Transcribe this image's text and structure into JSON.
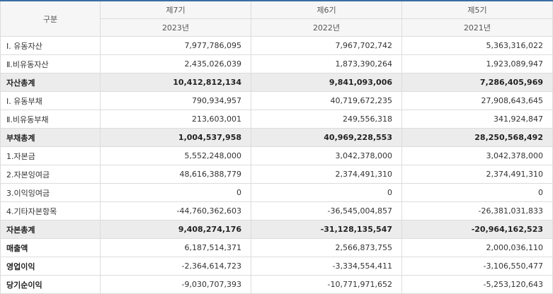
{
  "header": {
    "category": "구분",
    "periods": [
      {
        "period": "제7기",
        "year": "2023년"
      },
      {
        "period": "제6기",
        "year": "2022년"
      },
      {
        "period": "제5기",
        "year": "2021년"
      }
    ]
  },
  "rows": [
    {
      "label": "Ⅰ. 유동자산",
      "values": [
        "7,977,786,095",
        "7,967,702,742",
        "5,363,316,022"
      ],
      "style": "normal"
    },
    {
      "label": "Ⅱ.비유동자산",
      "values": [
        "2,435,026,039",
        "1,873,390,264",
        "1,923,089,947"
      ],
      "style": "normal"
    },
    {
      "label": "자산총계",
      "values": [
        "10,412,812,134",
        "9,841,093,006",
        "7,286,405,969"
      ],
      "style": "total"
    },
    {
      "label": "Ⅰ. 유동부채",
      "values": [
        "790,934,957",
        "40,719,672,235",
        "27,908,643,645"
      ],
      "style": "normal"
    },
    {
      "label": "Ⅱ.비유동부채",
      "values": [
        "213,603,001",
        "249,556,318",
        "341,924,847"
      ],
      "style": "normal"
    },
    {
      "label": "부채총계",
      "values": [
        "1,004,537,958",
        "40,969,228,553",
        "28,250,568,492"
      ],
      "style": "total"
    },
    {
      "label": "1.자본금",
      "values": [
        "5,552,248,000",
        "3,042,378,000",
        "3,042,378,000"
      ],
      "style": "normal"
    },
    {
      "label": "2.자본잉여금",
      "values": [
        "48,616,388,779",
        "2,374,491,310",
        "2,374,491,310"
      ],
      "style": "normal"
    },
    {
      "label": "3.이익잉여금",
      "values": [
        "0",
        "0",
        "0"
      ],
      "style": "normal"
    },
    {
      "label": "4.기타자본항목",
      "values": [
        "-44,760,362,603",
        "-36,545,004,857",
        "-26,381,031,833"
      ],
      "style": "normal"
    },
    {
      "label": "자본총계",
      "values": [
        "9,408,274,176",
        "-31,128,135,547",
        "-20,964,162,523"
      ],
      "style": "total"
    },
    {
      "label": "매출액",
      "values": [
        "6,187,514,371",
        "2,566,873,755",
        "2,000,036,110"
      ],
      "style": "bold"
    },
    {
      "label": "영업이익",
      "values": [
        "-2,364,614,723",
        "-3,334,554,411",
        "-3,106,550,477"
      ],
      "style": "bold"
    },
    {
      "label": "당기순이익",
      "values": [
        "-9,030,707,393",
        "-10,771,971,652",
        "-5,253,120,643"
      ],
      "style": "bold"
    }
  ]
}
